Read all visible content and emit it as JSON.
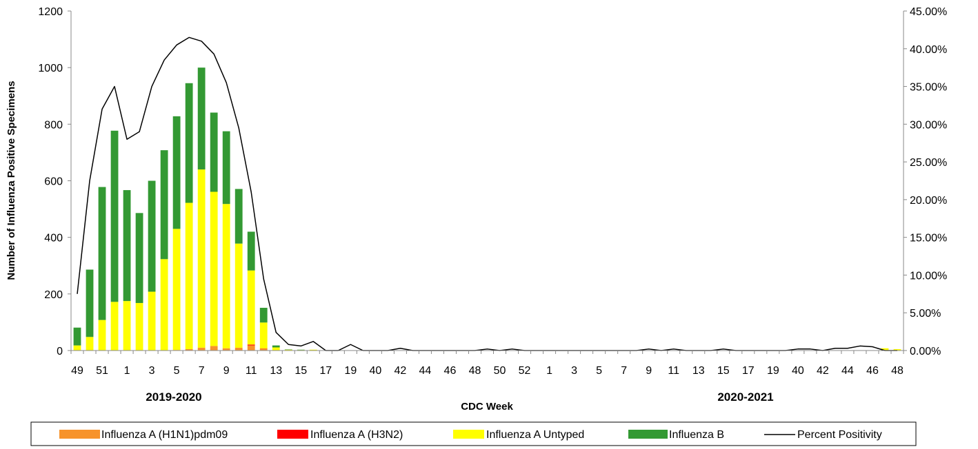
{
  "chart_data": {
    "type": "bar",
    "stacked": true,
    "xlabel": "CDC Week",
    "ylabel": "Number of Influenza Positive Specimens",
    "ylim": [
      0,
      1200
    ],
    "y_ticks": [
      "0",
      "200",
      "400",
      "600",
      "800",
      "1000",
      "1200"
    ],
    "y2lim": [
      0,
      45
    ],
    "y2_ticks": [
      "0.00%",
      "5.00%",
      "10.00%",
      "15.00%",
      "20.00%",
      "25.00%",
      "30.00%",
      "35.00%",
      "40.00%",
      "45.00%"
    ],
    "x_tick_labels": [
      "49",
      "51",
      "1",
      "3",
      "5",
      "7",
      "9",
      "11",
      "13",
      "15",
      "17",
      "19",
      "40",
      "42",
      "44",
      "46",
      "48",
      "50",
      "52",
      "1",
      "3",
      "5",
      "7",
      "9",
      "11",
      "13",
      "15",
      "17",
      "19",
      "40",
      "42",
      "44",
      "46",
      "48"
    ],
    "season_labels": [
      "2019-2020",
      "2020-2021"
    ],
    "grid": false,
    "legend_position": "bottom",
    "categories": [
      "49",
      "50",
      "51",
      "52",
      "1",
      "2",
      "3",
      "4",
      "5",
      "6",
      "7",
      "8",
      "9",
      "10",
      "11",
      "12",
      "13",
      "14",
      "15",
      "16",
      "17",
      "18",
      "19",
      "20",
      "40",
      "41",
      "42",
      "43",
      "44",
      "45",
      "46",
      "47",
      "48",
      "49",
      "50",
      "51",
      "52",
      "53",
      "1",
      "2",
      "3",
      "4",
      "5",
      "6",
      "7",
      "8",
      "9",
      "10",
      "11",
      "12",
      "13",
      "14",
      "15",
      "16",
      "17",
      "18",
      "19",
      "20",
      "40",
      "41",
      "42",
      "43",
      "44",
      "45",
      "46",
      "47",
      "48"
    ],
    "series": [
      {
        "name": "Influenza A (H1N1)pdm09",
        "color": "#f7932b",
        "values": [
          0,
          0,
          0,
          0,
          0,
          0,
          0,
          1,
          2,
          5,
          10,
          16,
          8,
          10,
          18,
          6,
          1,
          0,
          0,
          0,
          0,
          0,
          0,
          0,
          0,
          0,
          0,
          0,
          0,
          0,
          0,
          0,
          0,
          0,
          0,
          0,
          0,
          0,
          0,
          0,
          0,
          0,
          0,
          0,
          0,
          0,
          0,
          0,
          0,
          0,
          0,
          0,
          0,
          0,
          0,
          0,
          0,
          0,
          0,
          0,
          0,
          0,
          0,
          0,
          0,
          0,
          0
        ]
      },
      {
        "name": "Influenza A (H3N2)",
        "color": "#ff0000",
        "values": [
          0,
          0,
          0,
          0,
          0,
          0,
          0,
          0,
          0,
          0,
          0,
          0,
          0,
          0,
          3,
          1,
          0,
          0,
          0,
          0,
          0,
          0,
          0,
          0,
          0,
          0,
          0,
          0,
          0,
          0,
          0,
          0,
          0,
          0,
          0,
          0,
          0,
          0,
          0,
          0,
          0,
          0,
          0,
          0,
          0,
          0,
          0,
          0,
          0,
          0,
          0,
          0,
          0,
          0,
          0,
          0,
          0,
          0,
          0,
          0,
          0,
          0,
          0,
          0,
          0,
          0,
          0
        ]
      },
      {
        "name": "Influenza A Untyped",
        "color": "#ffff00",
        "values": [
          18,
          48,
          108,
          172,
          175,
          168,
          208,
          322,
          428,
          517,
          630,
          545,
          510,
          368,
          262,
          92,
          10,
          3,
          2,
          3,
          0,
          0,
          0,
          0,
          0,
          0,
          0,
          0,
          0,
          0,
          0,
          0,
          0,
          0,
          0,
          0,
          0,
          0,
          0,
          0,
          0,
          0,
          0,
          0,
          0,
          0,
          0,
          0,
          0,
          0,
          0,
          0,
          0,
          0,
          0,
          0,
          0,
          0,
          0,
          0,
          0,
          0,
          0,
          0,
          1,
          8,
          5
        ]
      },
      {
        "name": "Influenza B",
        "color": "#339933",
        "values": [
          63,
          238,
          470,
          605,
          392,
          318,
          392,
          385,
          398,
          423,
          360,
          280,
          257,
          193,
          137,
          52,
          7,
          1,
          1,
          0,
          0,
          0,
          0,
          0,
          0,
          0,
          0,
          0,
          0,
          0,
          0,
          0,
          0,
          0,
          0,
          0,
          0,
          0,
          0,
          0,
          0,
          0,
          0,
          0,
          0,
          0,
          0,
          0,
          0,
          0,
          0,
          0,
          0,
          0,
          0,
          0,
          0,
          0,
          0,
          0,
          0,
          0,
          0,
          0,
          0,
          0,
          0
        ]
      }
    ],
    "line": {
      "name": "Percent Positivity",
      "color": "#000000",
      "axis": "right",
      "values": [
        7.5,
        22.5,
        32,
        35,
        28,
        29,
        35,
        38.5,
        40.5,
        41.5,
        41,
        39.3,
        35.5,
        29.5,
        21,
        9.5,
        2.4,
        0.8,
        0.6,
        1.2,
        0,
        0,
        0.8,
        0,
        0,
        0,
        0.3,
        0,
        0,
        0,
        0,
        0,
        0,
        0.2,
        0,
        0.2,
        0,
        0,
        0,
        0,
        0,
        0,
        0,
        0,
        0,
        0,
        0.2,
        0,
        0.2,
        0,
        0,
        0,
        0.2,
        0,
        0,
        0,
        0,
        0,
        0.2,
        0.2,
        0,
        0.3,
        0.3,
        0.6,
        0.5,
        0,
        0
      ]
    }
  }
}
